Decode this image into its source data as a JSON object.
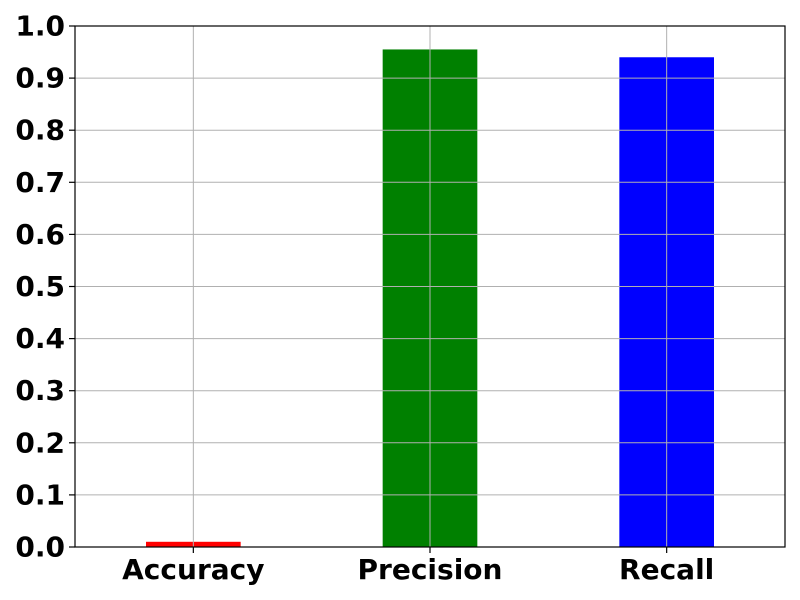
{
  "chart_data": {
    "type": "bar",
    "categories": [
      "Accuracy",
      "Precision",
      "Recall"
    ],
    "values": [
      0.01,
      0.955,
      0.94
    ],
    "colors": [
      "#ff0000",
      "#008000",
      "#0000ff"
    ],
    "title": "",
    "xlabel": "",
    "ylabel": "",
    "ylim": [
      0.0,
      1.0
    ],
    "yticks": [
      0.0,
      0.1,
      0.2,
      0.3,
      0.4,
      0.5,
      0.6,
      0.7,
      0.8,
      0.9,
      1.0
    ],
    "ytick_labels": [
      "0.0",
      "0.1",
      "0.2",
      "0.3",
      "0.4",
      "0.5",
      "0.6",
      "0.7",
      "0.8",
      "0.9",
      "1.0"
    ],
    "grid": true,
    "legend": "none"
  }
}
